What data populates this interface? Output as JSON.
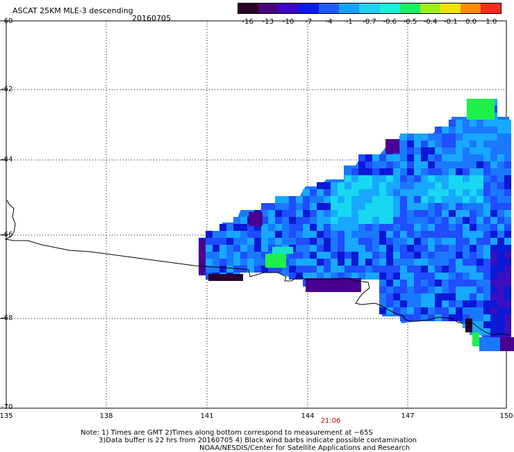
{
  "header": {
    "title": "ASCAT 25KM MLE-3 descending",
    "date": "20160705"
  },
  "colorbar": {
    "labels": [
      "-16",
      "-13",
      "-10",
      "-7",
      "-4",
      "-1",
      "-0.7",
      "-0.6",
      "-0.5",
      "-0.4",
      "-0.1",
      "0.0",
      "1.0"
    ],
    "colors": [
      "#2a0028",
      "#4a007a",
      "#3f00c8",
      "#0a1aee",
      "#1f5cff",
      "#16a0ff",
      "#1fd0f0",
      "#1af0d8",
      "#18f060",
      "#9cf018",
      "#f0e400",
      "#ff8c00",
      "#ff2a1a"
    ]
  },
  "axes": {
    "lat_labels": [
      "-60",
      "-62",
      "-64",
      "-66",
      "-68",
      "-70"
    ],
    "lon_labels": [
      "135",
      "138",
      "141",
      "144",
      "147",
      "150"
    ]
  },
  "time_label": "21:06",
  "notes": {
    "line1": "Note: 1) Times are GMT 2)Times along bottom correspond to measurement at −65S",
    "line2": "3)Data buffer is 22 hrs from 20160705 4) Black wind barbs indicate possible contamination",
    "line3": "NOAA/NESDIS/Center for Satellite Applications and Research"
  }
}
